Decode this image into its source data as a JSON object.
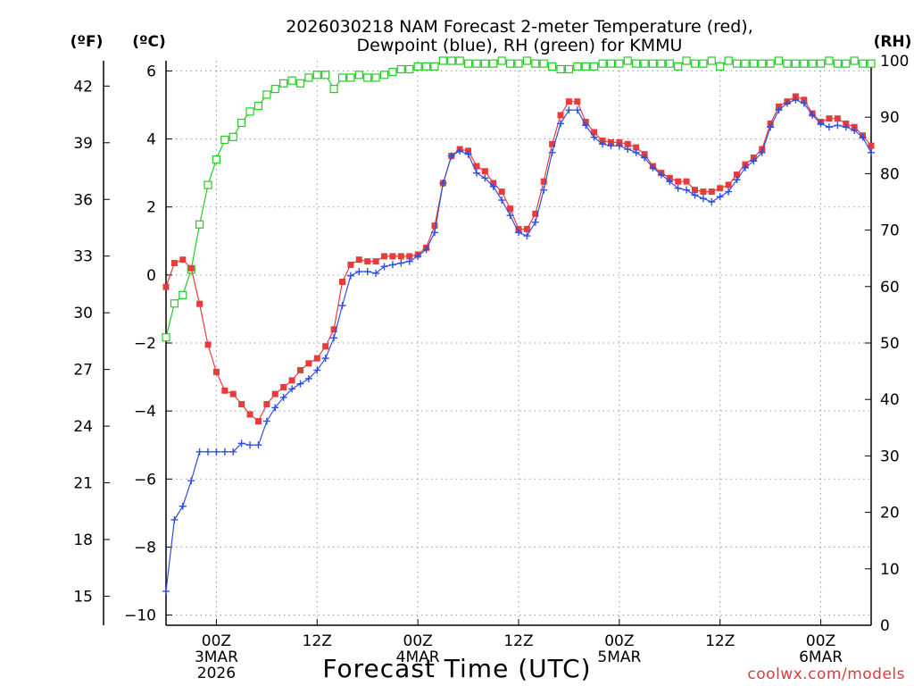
{
  "chart_data": {
    "type": "line",
    "title_line1": "2026030218 NAM Forecast 2-meter Temperature (red),",
    "title_line2": "Dewpoint (blue), RH (green) for KMMU",
    "xlabel": "Forecast Time (UTC)",
    "credit": "coolwx.com/models",
    "left_axis_label": "(ºF)",
    "celsius_axis_label": "(ºC)",
    "right_axis_label": "(RH)",
    "x_range_hours": [
      0,
      84
    ],
    "x_ticks": [
      {
        "hour": 6,
        "label": "00Z",
        "sub1": "3MAR",
        "sub2": "2026"
      },
      {
        "hour": 18,
        "label": "12Z",
        "sub1": "",
        "sub2": ""
      },
      {
        "hour": 30,
        "label": "00Z",
        "sub1": "4MAR",
        "sub2": ""
      },
      {
        "hour": 42,
        "label": "12Z",
        "sub1": "",
        "sub2": ""
      },
      {
        "hour": 54,
        "label": "00Z",
        "sub1": "5MAR",
        "sub2": ""
      },
      {
        "hour": 66,
        "label": "12Z",
        "sub1": "",
        "sub2": ""
      },
      {
        "hour": 78,
        "label": "00Z",
        "sub1": "6MAR",
        "sub2": ""
      }
    ],
    "celsius_range": [
      -10.3,
      6.3
    ],
    "celsius_ticks": [
      "6",
      "4",
      "2",
      "0",
      "−2",
      "−4",
      "−6",
      "−8",
      "−10"
    ],
    "fahrenheit_ticks": [
      "42",
      "39",
      "36",
      "33",
      "30",
      "27",
      "24",
      "21",
      "18",
      "15"
    ],
    "rh_range": [
      0,
      100
    ],
    "rh_ticks": [
      "100",
      "90",
      "80",
      "70",
      "60",
      "50",
      "40",
      "30",
      "20",
      "10",
      "0"
    ],
    "series": [
      {
        "name": "Temperature",
        "color": "#e83c3c",
        "marker": "filled-square",
        "values": [
          -0.35,
          0.35,
          0.45,
          0.2,
          -0.85,
          -2.05,
          -2.85,
          -3.4,
          -3.5,
          -3.8,
          -4.1,
          -4.3,
          -3.8,
          -3.5,
          -3.3,
          -3.1,
          -2.8,
          -2.6,
          -2.45,
          -2.1,
          -1.6,
          -0.2,
          0.3,
          0.45,
          0.4,
          0.4,
          0.55,
          0.55,
          0.55,
          0.55,
          0.6,
          0.8,
          1.45,
          2.7,
          3.5,
          3.7,
          3.65,
          3.2,
          3.05,
          2.7,
          2.45,
          1.95,
          1.35,
          1.35,
          1.8,
          2.75,
          3.85,
          4.7,
          5.1,
          5.1,
          4.5,
          4.2,
          3.95,
          3.9,
          3.9,
          3.85,
          3.75,
          3.55,
          3.2,
          3.0,
          2.85,
          2.75,
          2.75,
          2.5,
          2.45,
          2.45,
          2.55,
          2.65,
          2.95,
          3.25,
          3.45,
          3.7,
          4.45,
          4.95,
          5.1,
          5.25,
          5.15,
          4.75,
          4.5,
          4.6,
          4.6,
          4.45,
          4.35,
          4.1,
          3.8
        ]
      },
      {
        "name": "Dewpoint",
        "color": "#2f4fe0",
        "marker": "plus",
        "values": [
          -9.3,
          -7.2,
          -6.8,
          -6.05,
          -5.2,
          -5.2,
          -5.2,
          -5.2,
          -5.2,
          -4.95,
          -5.0,
          -5.0,
          -4.3,
          -3.9,
          -3.6,
          -3.35,
          -3.2,
          -3.05,
          -2.8,
          -2.45,
          -1.85,
          -0.9,
          -0.02,
          0.1,
          0.1,
          0.05,
          0.25,
          0.3,
          0.35,
          0.4,
          0.55,
          0.75,
          1.25,
          2.7,
          3.5,
          3.65,
          3.55,
          3.0,
          2.85,
          2.6,
          2.2,
          1.75,
          1.25,
          1.15,
          1.55,
          2.5,
          3.6,
          4.45,
          4.85,
          4.85,
          4.4,
          4.05,
          3.85,
          3.8,
          3.8,
          3.7,
          3.6,
          3.45,
          3.15,
          2.95,
          2.75,
          2.55,
          2.5,
          2.35,
          2.25,
          2.15,
          2.3,
          2.45,
          2.8,
          3.15,
          3.35,
          3.6,
          4.35,
          4.85,
          5.05,
          5.15,
          5.05,
          4.7,
          4.45,
          4.35,
          4.4,
          4.35,
          4.25,
          4.05,
          3.6
        ]
      },
      {
        "name": "RH",
        "color": "#22cc22",
        "marker": "open-square",
        "values": [
          51,
          57,
          58.5,
          63,
          71,
          78,
          82.5,
          86,
          86.5,
          89,
          91,
          92,
          94,
          95,
          96,
          96.5,
          96,
          97,
          97.5,
          97.5,
          95,
          97,
          97,
          97.5,
          97,
          97,
          97.5,
          98,
          98.5,
          98.5,
          99,
          99,
          99,
          100,
          100,
          100,
          99.5,
          99.5,
          99.5,
          99.5,
          100,
          99.5,
          99.5,
          100,
          99.5,
          99.5,
          99,
          98.5,
          98.5,
          99,
          99,
          99,
          99.5,
          99.5,
          99.5,
          100,
          99.5,
          99.5,
          99.5,
          99.5,
          99.5,
          99,
          100,
          99.5,
          99.5,
          100,
          99,
          100,
          99.5,
          99.5,
          99.5,
          99.5,
          99.5,
          100,
          99.5,
          99.5,
          99.5,
          99.5,
          99.5,
          100,
          99.5,
          99.5,
          100,
          99.5,
          99.5
        ]
      }
    ]
  }
}
